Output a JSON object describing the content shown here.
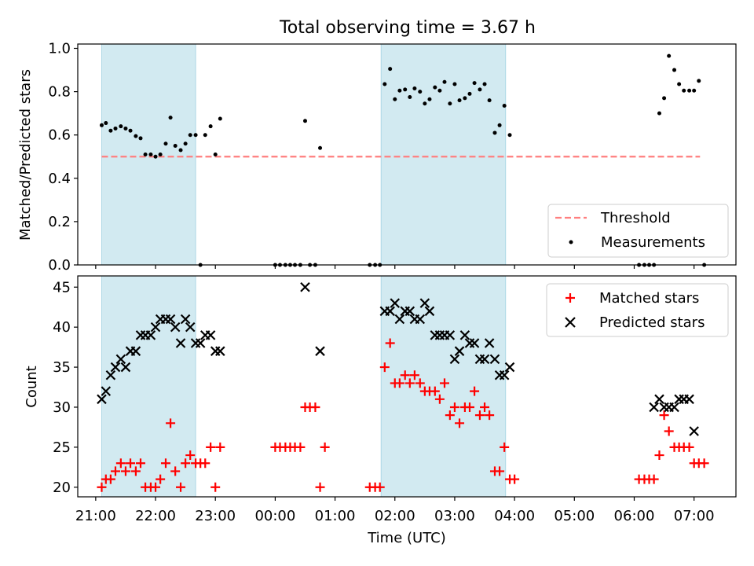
{
  "figure_title": "Total observing time = 3.67 h",
  "colors": {
    "shade": "#add8e6",
    "threshold": "#ff7f7f",
    "measurement": "#000000",
    "matched": "#ff0000",
    "predicted": "#000000"
  },
  "chart_data": [
    {
      "type": "scatter",
      "title": "Total observing time = 3.67 h",
      "ylabel": "Matched/Predicted stars",
      "xlabel": "",
      "xlim": [
        20.7,
        31.7
      ],
      "ylim": [
        0.0,
        1.02
      ],
      "yticks": [
        0.0,
        0.2,
        0.4,
        0.6,
        0.8,
        1.0
      ],
      "ytick_labels": [
        "0.0",
        "0.2",
        "0.4",
        "0.6",
        "0.8",
        "1.0"
      ],
      "legend_position": "lower right",
      "shaded_intervals": [
        [
          21.1,
          22.67
        ],
        [
          25.77,
          27.85
        ]
      ],
      "threshold": {
        "name": "Threshold",
        "y": 0.5,
        "x_range": [
          21.1,
          31.1
        ]
      },
      "series": [
        {
          "name": "Measurements",
          "x": [
            21.1,
            21.17,
            21.25,
            21.33,
            21.42,
            21.5,
            21.58,
            21.67,
            21.75,
            21.83,
            21.92,
            22.0,
            22.08,
            22.17,
            22.25,
            22.33,
            22.42,
            22.5,
            22.58,
            22.67,
            22.75,
            22.83,
            22.92,
            23.0,
            23.08,
            24.0,
            24.08,
            24.17,
            24.25,
            24.33,
            24.42,
            24.5,
            24.58,
            24.67,
            24.75,
            25.58,
            25.67,
            25.75,
            25.83,
            25.92,
            26.0,
            26.08,
            26.17,
            26.25,
            26.33,
            26.42,
            26.5,
            26.58,
            26.67,
            26.75,
            26.83,
            26.92,
            27.0,
            27.08,
            27.17,
            27.25,
            27.33,
            27.42,
            27.5,
            27.58,
            27.67,
            27.75,
            27.83,
            27.92,
            30.08,
            30.17,
            30.25,
            30.33,
            30.42,
            30.5,
            30.58,
            30.67,
            30.75,
            30.83,
            30.92,
            31.0,
            31.08,
            31.17
          ],
          "y": [
            0.645,
            0.655,
            0.62,
            0.63,
            0.64,
            0.63,
            0.62,
            0.595,
            0.585,
            0.51,
            0.51,
            0.5,
            0.51,
            0.56,
            0.68,
            0.55,
            0.53,
            0.56,
            0.6,
            0.6,
            0.0,
            0.6,
            0.64,
            0.51,
            0.675,
            0.0,
            0.0,
            0.0,
            0.0,
            0.0,
            0.0,
            0.665,
            0.0,
            0.0,
            0.54,
            0.0,
            0.0,
            0.0,
            0.835,
            0.905,
            0.765,
            0.805,
            0.81,
            0.775,
            0.815,
            0.8,
            0.745,
            0.765,
            0.82,
            0.805,
            0.845,
            0.745,
            0.835,
            0.76,
            0.77,
            0.79,
            0.84,
            0.81,
            0.835,
            0.76,
            0.61,
            0.645,
            0.735,
            0.6,
            0.0,
            0.0,
            0.0,
            0.0,
            0.7,
            0.77,
            0.965,
            0.9,
            0.835,
            0.805,
            0.805,
            0.805,
            0.85,
            0.0
          ]
        }
      ]
    },
    {
      "type": "scatter",
      "title": "",
      "ylabel": "Count",
      "xlabel": "Time (UTC)",
      "xlim": [
        20.7,
        31.7
      ],
      "ylim": [
        18.8,
        46.4
      ],
      "yticks": [
        20,
        25,
        30,
        35,
        40,
        45
      ],
      "ytick_labels": [
        "20",
        "25",
        "30",
        "35",
        "40",
        "45"
      ],
      "xticks": [
        21,
        22,
        23,
        24,
        25,
        26,
        27,
        28,
        29,
        30,
        31
      ],
      "xtick_labels": [
        "21:00",
        "22:00",
        "23:00",
        "00:00",
        "01:00",
        "02:00",
        "03:00",
        "04:00",
        "05:00",
        "06:00",
        "07:00"
      ],
      "legend_position": "upper right",
      "shaded_intervals": [
        [
          21.1,
          22.67
        ],
        [
          25.77,
          27.85
        ]
      ],
      "series": [
        {
          "name": "Matched stars",
          "marker": "plus",
          "x": [
            21.1,
            21.17,
            21.25,
            21.33,
            21.42,
            21.5,
            21.58,
            21.67,
            21.75,
            21.83,
            21.92,
            22.0,
            22.08,
            22.17,
            22.25,
            22.33,
            22.42,
            22.5,
            22.58,
            22.67,
            22.75,
            22.83,
            22.92,
            23.0,
            23.08,
            24.0,
            24.08,
            24.17,
            24.25,
            24.33,
            24.42,
            24.5,
            24.58,
            24.67,
            24.75,
            24.83,
            25.58,
            25.67,
            25.75,
            25.83,
            25.92,
            26.0,
            26.08,
            26.17,
            26.25,
            26.33,
            26.42,
            26.5,
            26.58,
            26.67,
            26.75,
            26.83,
            26.92,
            27.0,
            27.08,
            27.17,
            27.25,
            27.33,
            27.42,
            27.5,
            27.58,
            27.67,
            27.75,
            27.83,
            27.92,
            28.0,
            30.08,
            30.17,
            30.25,
            30.33,
            30.42,
            30.5,
            30.58,
            30.67,
            30.75,
            30.83,
            30.92,
            31.0,
            31.08,
            31.17
          ],
          "y": [
            20,
            21,
            21,
            22,
            23,
            22,
            23,
            22,
            23,
            20,
            20,
            20,
            21,
            23,
            28,
            22,
            20,
            23,
            24,
            23,
            23,
            23,
            25,
            20,
            25,
            25,
            25,
            25,
            25,
            25,
            25,
            30,
            30,
            30,
            20,
            25,
            20,
            20,
            20,
            35,
            38,
            33,
            33,
            34,
            33,
            34,
            33,
            32,
            32,
            32,
            31,
            33,
            29,
            30,
            28,
            30,
            30,
            32,
            29,
            30,
            29,
            22,
            22,
            25,
            21,
            21,
            21,
            21,
            21,
            21,
            24,
            29,
            27,
            25,
            25,
            25,
            25,
            23,
            23,
            23
          ],
          "valid_count": 80
        },
        {
          "name": "Predicted stars",
          "marker": "x",
          "x": [
            21.1,
            21.17,
            21.25,
            21.33,
            21.42,
            21.5,
            21.58,
            21.67,
            21.75,
            21.83,
            21.92,
            22.0,
            22.08,
            22.17,
            22.25,
            22.33,
            22.42,
            22.5,
            22.58,
            22.67,
            22.75,
            22.83,
            22.92,
            23.0,
            23.08,
            24.5,
            24.75,
            25.83,
            25.92,
            26.0,
            26.08,
            26.17,
            26.25,
            26.33,
            26.42,
            26.5,
            26.58,
            26.67,
            26.75,
            26.83,
            26.92,
            27.0,
            27.08,
            27.17,
            27.25,
            27.33,
            27.42,
            27.5,
            27.58,
            27.67,
            27.75,
            27.83,
            27.92,
            30.33,
            30.42,
            30.5,
            30.58,
            30.67,
            30.75,
            30.83,
            30.92,
            31.0
          ],
          "y": [
            31,
            32,
            34,
            35,
            36,
            35,
            37,
            37,
            39,
            39,
            39,
            40,
            41,
            41,
            41,
            40,
            38,
            41,
            40,
            38,
            38,
            39,
            39,
            37,
            37,
            45,
            37,
            42,
            42,
            43,
            41,
            42,
            42,
            41,
            41,
            43,
            42,
            39,
            39,
            39,
            39,
            36,
            37,
            39,
            38,
            38,
            36,
            36,
            38,
            36,
            34,
            34,
            35,
            30,
            31,
            30,
            30,
            30,
            31,
            31,
            31,
            27
          ]
        }
      ]
    }
  ],
  "legends": {
    "top": [
      "Threshold",
      "Measurements"
    ],
    "bottom": [
      "Matched stars",
      "Predicted stars"
    ]
  }
}
